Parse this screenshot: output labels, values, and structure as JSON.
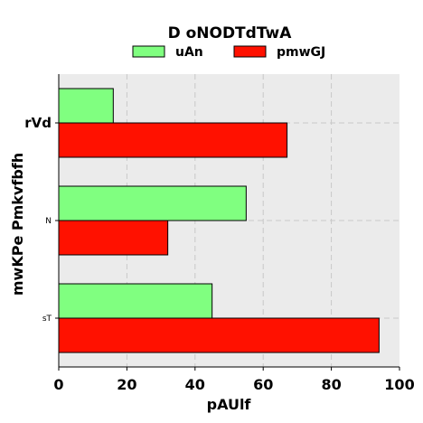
{
  "chart_data": {
    "type": "bar",
    "orientation": "horizontal",
    "title": "D oNODTdTwA",
    "xlabel": "pAUlf",
    "ylabel": "mwKPe Pmkvfbfh",
    "categories": [
      "rVd",
      "N",
      "sT"
    ],
    "category_label_sizes": [
      "large",
      "small",
      "small"
    ],
    "series": [
      {
        "name": "uAn",
        "color": "#80ff80",
        "values": [
          16,
          55,
          45
        ]
      },
      {
        "name": "pmwGJ",
        "color": "#ff1100",
        "values": [
          67,
          32,
          94
        ]
      }
    ],
    "xlim": [
      0,
      100
    ],
    "xticks": [
      0,
      20,
      40,
      60,
      80,
      100
    ],
    "grid": true,
    "legend_position": "top-center",
    "plot_background": "#ebebeb"
  }
}
